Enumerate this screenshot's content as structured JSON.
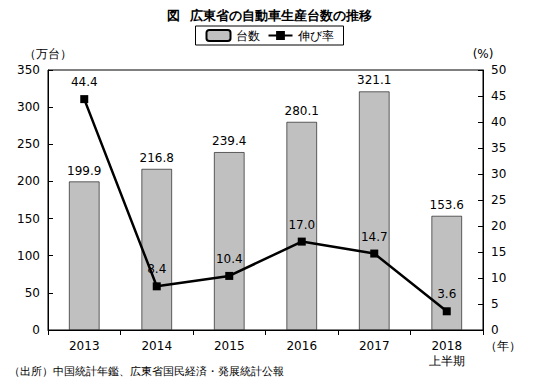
{
  "chart_data": {
    "type": "bar",
    "title": "図  広東省の自動車生産台数の推移",
    "categories": [
      "2013",
      "2014",
      "2015",
      "2016",
      "2017",
      "2018\n上半期"
    ],
    "xlabel": "（年）",
    "ylabel": "（万台）",
    "y2label": "(%)",
    "annotations": [
      "（出所）中国統計年鑑、広東省国民経済・発展統計公報"
    ],
    "series": [
      {
        "name": "台数",
        "type": "bar",
        "color": "#c0c0c0",
        "values": [
          199.9,
          216.8,
          239.4,
          280.1,
          321.1,
          153.6
        ]
      },
      {
        "name": "伸び率",
        "type": "line",
        "axis": "y2",
        "color": "#000000",
        "marker": "square",
        "values": [
          44.4,
          8.4,
          10.4,
          17.0,
          14.7,
          3.6
        ],
        "value_labels": [
          "44.4",
          "8.4",
          "10.4",
          "17.0",
          "14.7",
          "3.6"
        ]
      }
    ],
    "ylim": [
      0,
      350
    ],
    "yticks": [
      0,
      50,
      100,
      150,
      200,
      250,
      300,
      350
    ],
    "y2lim": [
      0,
      50
    ],
    "y2ticks": [
      0,
      5,
      10,
      15,
      20,
      25,
      30,
      35,
      40,
      45,
      50
    ],
    "legend": "top",
    "grid": false,
    "data_labels": true
  }
}
